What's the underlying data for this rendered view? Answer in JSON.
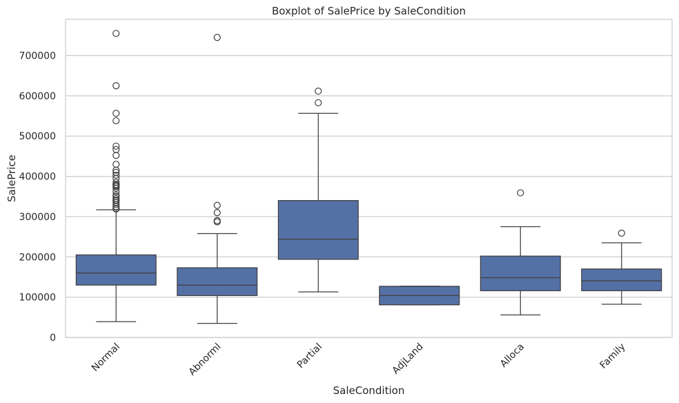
{
  "chart_data": {
    "type": "box",
    "title": "Boxplot of SalePrice by SaleCondition",
    "xlabel": "SaleCondition",
    "ylabel": "SalePrice",
    "ylim": [
      0,
      790000
    ],
    "yticks": [
      0,
      100000,
      200000,
      300000,
      400000,
      500000,
      600000,
      700000
    ],
    "ytick_labels": [
      "0",
      "100000",
      "200000",
      "300000",
      "400000",
      "500000",
      "600000",
      "700000"
    ],
    "grid": true,
    "grid_axis": "y",
    "box_color": "#5471a6",
    "line_color": "#3d3d3d",
    "categories": [
      "Normal",
      "Abnorml",
      "Partial",
      "AdjLand",
      "Alloca",
      "Family"
    ],
    "boxes": [
      {
        "category": "Normal",
        "whisker_low": 39300,
        "q1": 130000,
        "median": 160000,
        "q3": 205000,
        "whisker_high": 317000,
        "outliers": [
          755000,
          625000,
          556581,
          538000,
          475000,
          466500,
          451950,
          430000,
          415298,
          410000,
          402861,
          395000,
          385000,
          380000,
          377426,
          375000,
          370878,
          362500,
          354000,
          350000,
          345000,
          341000,
          340000,
          335000,
          330000,
          325000,
          320000,
          319000
        ]
      },
      {
        "category": "Abnorml",
        "whisker_low": 34900,
        "q1": 104000,
        "median": 130000,
        "q3": 173000,
        "whisker_high": 258000,
        "outliers": [
          745000,
          328000,
          310000,
          290000,
          287000
        ]
      },
      {
        "category": "Partial",
        "whisker_low": 113000,
        "q1": 194000,
        "median": 244000,
        "q3": 340000,
        "whisker_high": 556581,
        "outliers": [
          611657,
          582933
        ]
      },
      {
        "category": "AdjLand",
        "whisker_low": 81000,
        "q1": 81000,
        "median": 104000,
        "q3": 127000,
        "whisker_high": 127500,
        "outliers": []
      },
      {
        "category": "Alloca",
        "whisker_low": 55993,
        "q1": 116000,
        "median": 148145,
        "q3": 202000,
        "whisker_high": 275000,
        "outliers": [
          359100
        ]
      },
      {
        "category": "Family",
        "whisker_low": 82500,
        "q1": 116000,
        "median": 140500,
        "q3": 170000,
        "whisker_high": 235000,
        "outliers": [
          259000
        ]
      }
    ]
  }
}
